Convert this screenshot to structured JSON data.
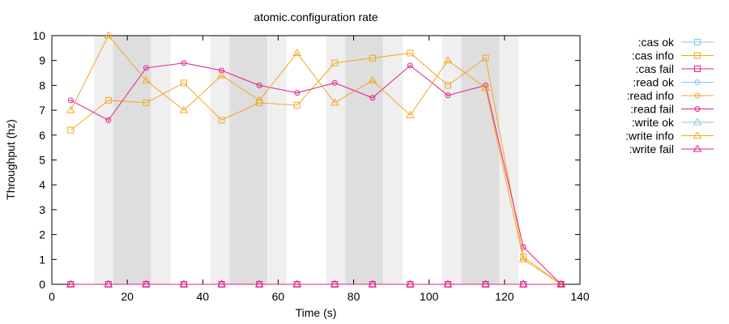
{
  "chart_data": {
    "type": "line",
    "title": "atomic.configuration rate",
    "xlabel": "Time (s)",
    "ylabel": "Throughput (hz)",
    "xlim": [
      0,
      140
    ],
    "ylim": [
      0,
      10
    ],
    "xticks": [
      0,
      20,
      40,
      60,
      80,
      100,
      120,
      140
    ],
    "yticks": [
      0,
      1,
      2,
      3,
      4,
      5,
      6,
      7,
      8,
      9,
      10
    ],
    "grid": false,
    "legend_position": "outside-right",
    "shaded_intervals": [
      {
        "x0": 11.2,
        "x1": 31.5,
        "shade": "light"
      },
      {
        "x0": 16.3,
        "x1": 26.3,
        "shade": "dark"
      },
      {
        "x0": 42.0,
        "x1": 62.3,
        "shade": "light"
      },
      {
        "x0": 47.1,
        "x1": 57.1,
        "shade": "dark"
      },
      {
        "x0": 72.7,
        "x1": 93.0,
        "shade": "light"
      },
      {
        "x0": 77.8,
        "x1": 87.8,
        "shade": "dark"
      },
      {
        "x0": 103.5,
        "x1": 123.8,
        "shade": "light"
      },
      {
        "x0": 108.6,
        "x1": 118.6,
        "shade": "dark"
      }
    ],
    "x": [
      5,
      15,
      25,
      35,
      45,
      55,
      65,
      75,
      85,
      95,
      105,
      115,
      125,
      135
    ],
    "series": [
      {
        "name": ":cas ok",
        "color": "#87c4e6",
        "marker": "square",
        "values": [
          null,
          null,
          null,
          null,
          null,
          null,
          null,
          null,
          null,
          null,
          null,
          null,
          null,
          null
        ]
      },
      {
        "name": ":cas info",
        "color": "#f5a623",
        "marker": "square",
        "values": [
          6.2,
          7.4,
          7.3,
          8.1,
          6.6,
          7.3,
          7.2,
          8.9,
          9.1,
          9.3,
          8.0,
          9.1,
          1.1,
          0
        ]
      },
      {
        "name": ":cas fail",
        "color": "#e0218a",
        "marker": "square",
        "values": [
          0,
          0,
          0,
          0,
          0,
          0,
          0,
          0,
          0,
          0,
          0,
          0,
          0,
          0
        ]
      },
      {
        "name": ":read ok",
        "color": "#87c4e6",
        "marker": "circle",
        "values": [
          null,
          null,
          null,
          null,
          null,
          null,
          null,
          null,
          null,
          null,
          null,
          null,
          null,
          null
        ]
      },
      {
        "name": ":read info",
        "color": "#f5a623",
        "marker": "circle",
        "values": [
          null,
          null,
          null,
          null,
          null,
          null,
          null,
          null,
          null,
          null,
          null,
          null,
          null,
          null
        ]
      },
      {
        "name": ":read fail",
        "color": "#e0218a",
        "marker": "circle",
        "values": [
          7.4,
          6.6,
          8.7,
          8.9,
          8.6,
          8.0,
          7.7,
          8.1,
          7.5,
          8.8,
          7.6,
          8.0,
          1.5,
          0
        ]
      },
      {
        "name": ":write ok",
        "color": "#87c4e6",
        "marker": "triangle",
        "values": [
          null,
          null,
          null,
          null,
          null,
          null,
          null,
          null,
          null,
          null,
          null,
          null,
          null,
          null
        ]
      },
      {
        "name": ":write info",
        "color": "#f5a623",
        "marker": "triangle",
        "values": [
          7.0,
          10.0,
          8.2,
          7.0,
          8.4,
          7.4,
          9.3,
          7.3,
          8.2,
          6.8,
          9.0,
          7.9,
          1.0,
          0
        ]
      },
      {
        "name": ":write fail",
        "color": "#e0218a",
        "marker": "triangle",
        "values": [
          0,
          0,
          0,
          0,
          0,
          0,
          0,
          0,
          0,
          0,
          0,
          0,
          0,
          0
        ]
      }
    ]
  }
}
